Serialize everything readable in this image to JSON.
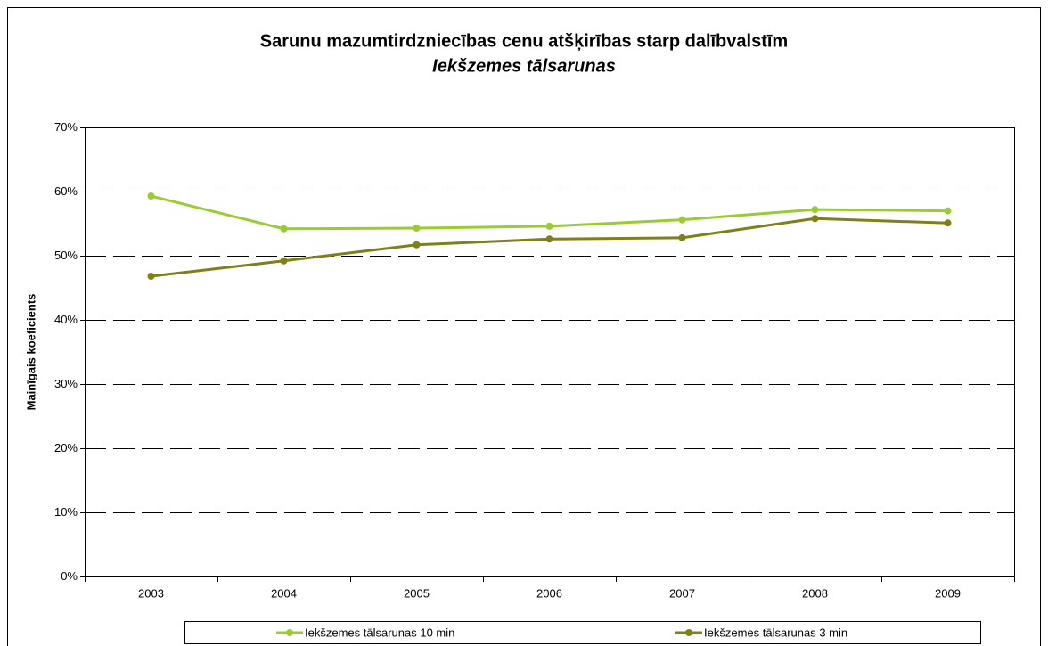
{
  "chart_data": {
    "type": "line",
    "title": "Sarunu mazumtirdzniecības cenu atšķirības starp dalībvalstīm",
    "subtitle": "Iekšzemes tālsarunas",
    "y_label": "Mainīgais koeficients",
    "categories": [
      "2003",
      "2004",
      "2005",
      "2006",
      "2007",
      "2008",
      "2009"
    ],
    "series": [
      {
        "name": "Iekšzemes tālsarunas 10 min",
        "color": "#99cc33",
        "values": [
          59.3,
          54.2,
          54.3,
          54.6,
          55.6,
          57.2,
          57.0
        ]
      },
      {
        "name": "Iekšzemes tālsarunas 3 min",
        "color": "#808019",
        "values": [
          46.8,
          49.2,
          51.7,
          52.6,
          52.8,
          55.8,
          55.1
        ]
      }
    ],
    "ylim": [
      0,
      70
    ],
    "yticks": [
      {
        "value": 0,
        "label": "0%"
      },
      {
        "value": 10,
        "label": "10%"
      },
      {
        "value": 20,
        "label": "20%"
      },
      {
        "value": 30,
        "label": "30%"
      },
      {
        "value": 40,
        "label": "40%"
      },
      {
        "value": 50,
        "label": "50%"
      },
      {
        "value": 60,
        "label": "60%"
      },
      {
        "value": 70,
        "label": "70%"
      }
    ],
    "grid": true,
    "legend": "bottom"
  }
}
